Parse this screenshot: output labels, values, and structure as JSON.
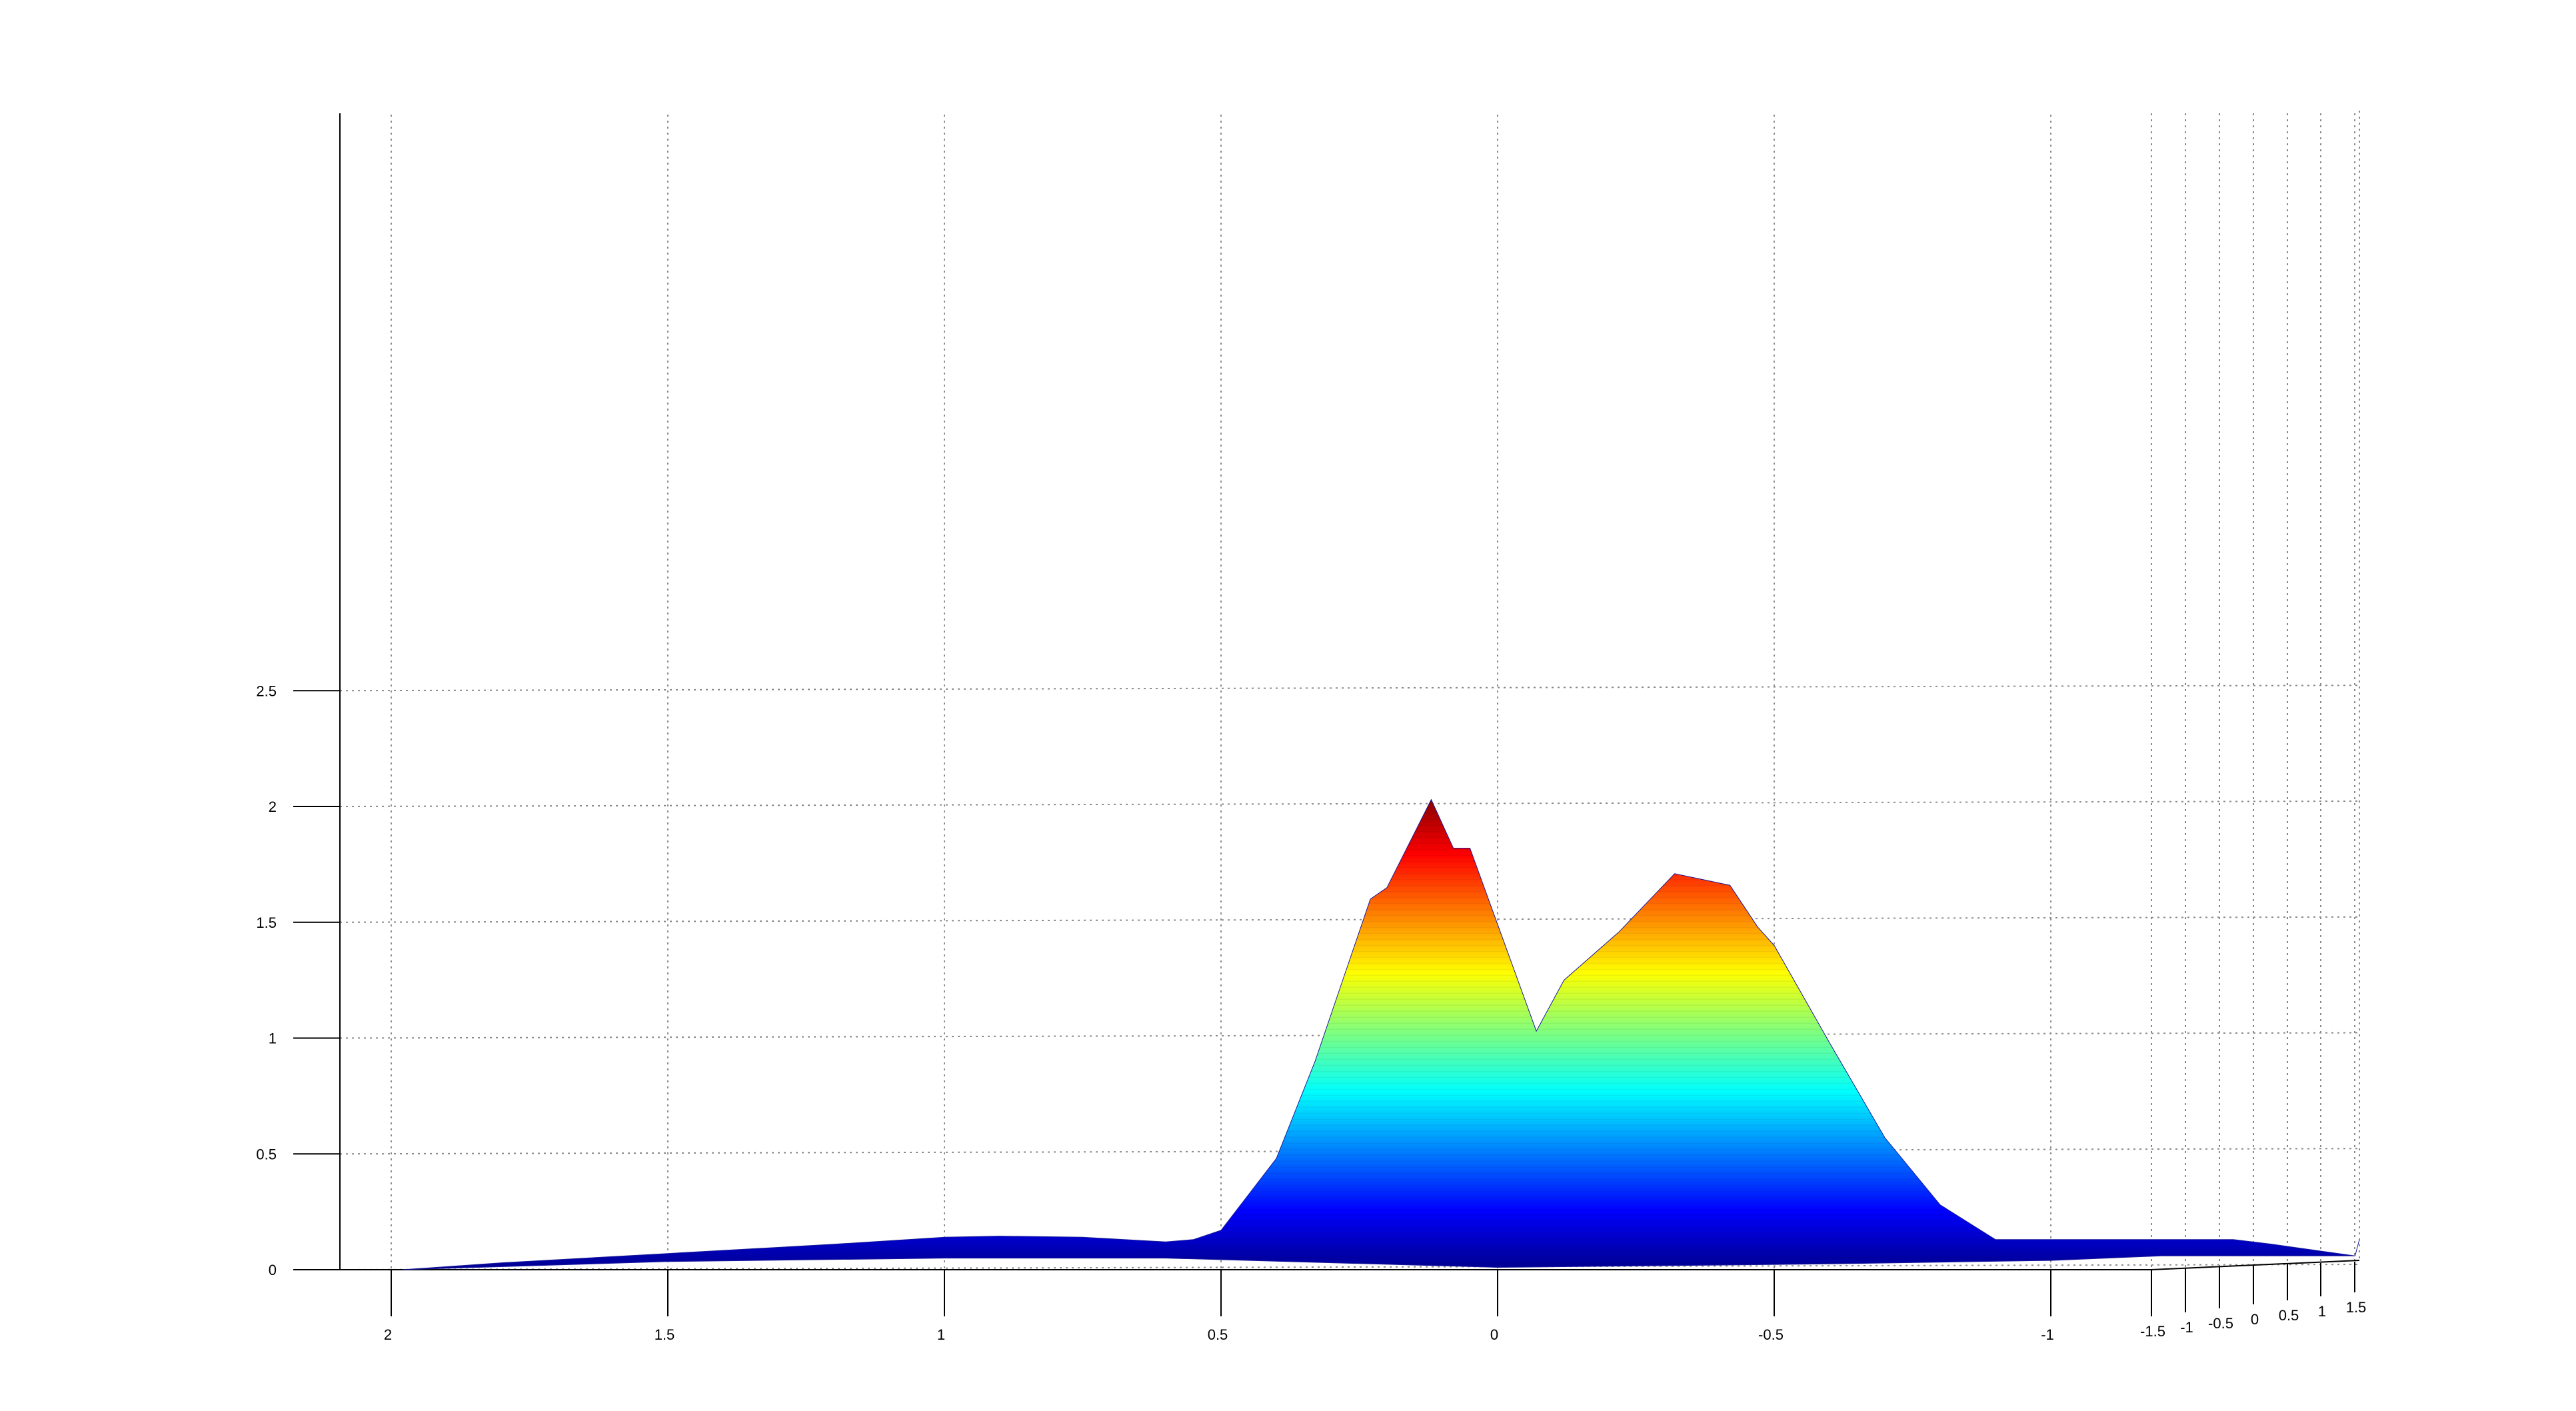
{
  "chart_data": {
    "type": "area",
    "subtype": "3d-surface-side-view",
    "title": "",
    "xlabel": "",
    "ylabel": "",
    "zlabel": "",
    "x_axis": {
      "ticks": [
        2,
        1.5,
        1,
        0.5,
        0,
        -0.5,
        -1
      ],
      "tick_labels": [
        "2",
        "1.5",
        "1",
        "0.5",
        "0",
        "-0.5",
        "-1"
      ],
      "range": [
        2.1,
        -1.2
      ],
      "reversed": true
    },
    "y_axis": {
      "ticks": [
        -1.5,
        -1,
        -0.5,
        0,
        0.5,
        1,
        1.5
      ],
      "tick_labels": [
        "-1.5",
        "-1",
        "-0.5",
        "0",
        "0.5",
        "1",
        "1.5"
      ],
      "range": [
        -1.5,
        1.5
      ]
    },
    "z_axis": {
      "ticks": [
        0,
        0.5,
        1,
        1.5,
        2,
        2.5
      ],
      "tick_labels": [
        "0",
        "0.5",
        "1",
        "1.5",
        "2",
        "2.5"
      ],
      "range": [
        0,
        2.5
      ]
    },
    "grid": true,
    "colormap": "jet",
    "colormap_stops": [
      "#00008f",
      "#0000ff",
      "#00ffff",
      "#ffff00",
      "#ff0000",
      "#800000"
    ],
    "surface_outline": [
      {
        "x": 1.98,
        "z": 0.0
      },
      {
        "x": 1.8,
        "z": 0.03
      },
      {
        "x": 1.5,
        "z": 0.07
      },
      {
        "x": 1.2,
        "z": 0.11
      },
      {
        "x": 1.0,
        "z": 0.14
      },
      {
        "x": 0.9,
        "z": 0.145
      },
      {
        "x": 0.75,
        "z": 0.14
      },
      {
        "x": 0.6,
        "z": 0.12
      },
      {
        "x": 0.55,
        "z": 0.13
      },
      {
        "x": 0.5,
        "z": 0.17
      },
      {
        "x": 0.4,
        "z": 0.48
      },
      {
        "x": 0.33,
        "z": 0.9
      },
      {
        "x": 0.28,
        "z": 1.25
      },
      {
        "x": 0.23,
        "z": 1.6
      },
      {
        "x": 0.2,
        "z": 1.65
      },
      {
        "x": 0.12,
        "z": 2.03
      },
      {
        "x": 0.08,
        "z": 1.82
      },
      {
        "x": 0.05,
        "z": 1.82
      },
      {
        "x": -0.07,
        "z": 1.03
      },
      {
        "x": -0.12,
        "z": 1.25
      },
      {
        "x": -0.22,
        "z": 1.46
      },
      {
        "x": -0.32,
        "z": 1.71
      },
      {
        "x": -0.42,
        "z": 1.66
      },
      {
        "x": -0.47,
        "z": 1.48
      },
      {
        "x": -0.5,
        "z": 1.4
      },
      {
        "x": -0.6,
        "z": 0.98
      },
      {
        "x": -0.7,
        "z": 0.57
      },
      {
        "x": -0.8,
        "z": 0.28
      },
      {
        "x": -0.9,
        "z": 0.13
      },
      {
        "x": -1.0,
        "z": 0.13
      },
      {
        "x": -1.2,
        "z": 0.13
      },
      {
        "x": -1.33,
        "z": 0.13
      },
      {
        "x": -1.4,
        "z": 0.11
      },
      {
        "x": -1.55,
        "z": 0.06
      }
    ],
    "surface_base": [
      {
        "x": -1.55,
        "z": 0.06
      },
      {
        "x": -1.2,
        "z": 0.06
      },
      {
        "x": -1.0,
        "z": 0.04
      },
      {
        "x": -0.6,
        "z": 0.025
      },
      {
        "x": -0.2,
        "z": 0.015
      },
      {
        "x": 0.0,
        "z": 0.01
      },
      {
        "x": 0.3,
        "z": 0.03
      },
      {
        "x": 0.6,
        "z": 0.05
      },
      {
        "x": 1.0,
        "z": 0.05
      },
      {
        "x": 1.5,
        "z": 0.035
      },
      {
        "x": 1.98,
        "z": 0.0
      }
    ]
  }
}
